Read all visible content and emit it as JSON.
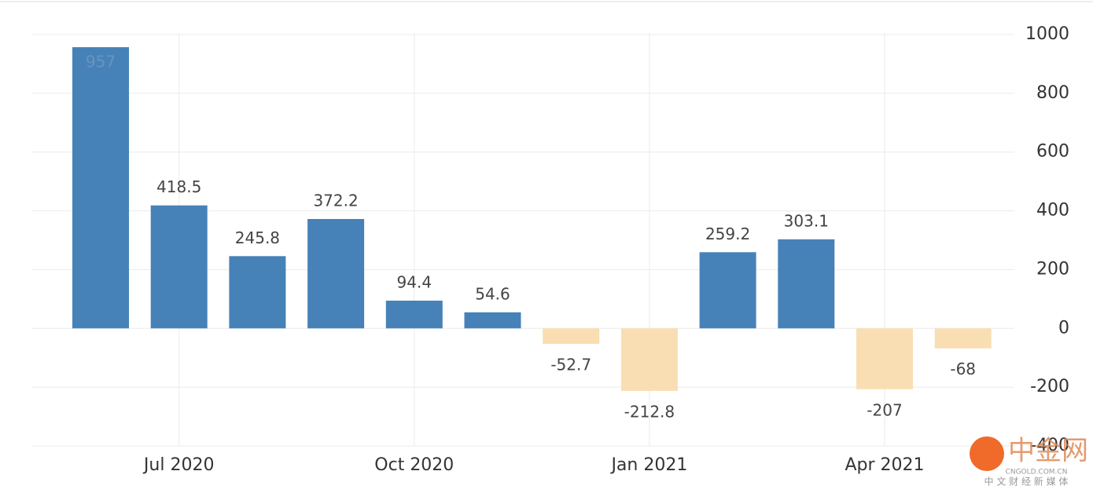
{
  "chart_data": {
    "type": "bar",
    "categories": [
      null,
      "Jul 2020",
      null,
      null,
      "Oct 2020",
      null,
      null,
      "Jan 2021",
      null,
      null,
      "Apr 2021",
      null
    ],
    "values": [
      957,
      418.5,
      245.8,
      372.2,
      94.4,
      54.6,
      -52.7,
      -212.8,
      259.2,
      303.1,
      -207,
      -68
    ],
    "color": "#4682b8",
    "negative_color": "#f9deb3",
    "ylim": [
      -400,
      1000
    ],
    "yticks": [
      -400,
      -200,
      0,
      200,
      400,
      600,
      800,
      1000
    ],
    "grid": true,
    "y_axis_side": "right",
    "watermark": {
      "logo": "中金网",
      "site": "CNGOLD.COM.CN",
      "tagline": "中 文 财 经 新 媒 体"
    }
  }
}
